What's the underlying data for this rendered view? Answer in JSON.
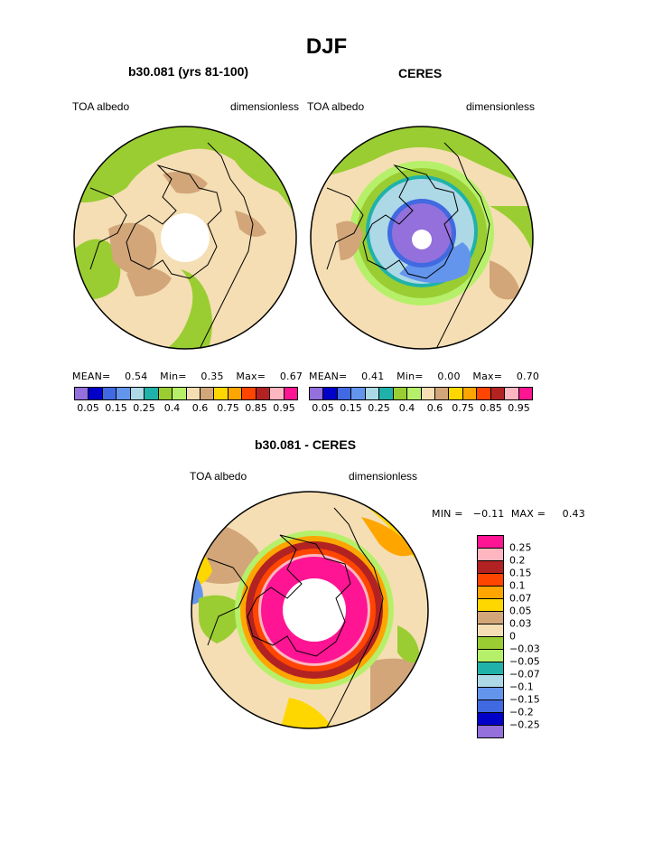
{
  "figure": {
    "title": "DJF"
  },
  "panels": [
    {
      "title": "b30.081 (yrs 81-100)",
      "left_label": "TOA albedo",
      "right_label": "dimensionless",
      "stats": {
        "mean_label": "MEAN=",
        "mean": "0.54",
        "min_label": "Min=",
        "min": "0.35",
        "max_label": "Max=",
        "max": "0.67"
      }
    },
    {
      "title": "CERES",
      "left_label": "TOA albedo",
      "right_label": "dimensionless",
      "stats": {
        "mean_label": "MEAN=",
        "mean": "0.41",
        "min_label": "Min=",
        "min": "0.00",
        "max_label": "Max=",
        "max": "0.70"
      }
    },
    {
      "title": "b30.081 - CERES",
      "left_label": "TOA albedo",
      "right_label": "dimensionless",
      "stats_text": "MIN =   −0.11  MAX =     0.43"
    }
  ],
  "albedo_colorbar": {
    "colors": [
      "#9370db",
      "#0000c8",
      "#4169e1",
      "#6495ed",
      "#add8e6",
      "#20b2aa",
      "#9acd32",
      "#b6f06a",
      "#f5deb3",
      "#d2a679",
      "#ffd700",
      "#ffa500",
      "#ff4500",
      "#b22222",
      "#ffb6c1",
      "#ff1493"
    ],
    "labels": [
      "0.05",
      "0.15",
      "0.25",
      "0.4",
      "0.6",
      "0.75",
      "0.85",
      "0.95"
    ]
  },
  "diff_colorbar": {
    "colors": [
      "#ff1493",
      "#ffb6c1",
      "#b22222",
      "#ff4500",
      "#ffa500",
      "#ffd700",
      "#d2a679",
      "#f5deb3",
      "#9acd32",
      "#b6f06a",
      "#20b2aa",
      "#add8e6",
      "#6495ed",
      "#4169e1",
      "#0000c8",
      "#9370db"
    ],
    "labels": [
      "0.25",
      "0.2",
      "0.15",
      "0.1",
      "0.07",
      "0.05",
      "0.03",
      "0",
      "−0.03",
      "−0.05",
      "−0.07",
      "−0.1",
      "−0.15",
      "−0.2",
      "−0.25"
    ]
  },
  "map_colors": {
    "land_tan": "#d2a679",
    "wheat": "#f5deb3",
    "green": "#9acd32",
    "lightgreen": "#b6f06a",
    "teal": "#20b2aa",
    "lightblue": "#add8e6",
    "cornflower": "#6495ed",
    "royalblue": "#4169e1",
    "purple": "#9370db",
    "magenta": "#ff1493",
    "red": "#b22222",
    "orangered": "#ff4500",
    "orange": "#ffa500",
    "yellow": "#ffd700",
    "pink": "#ffb6c1"
  }
}
